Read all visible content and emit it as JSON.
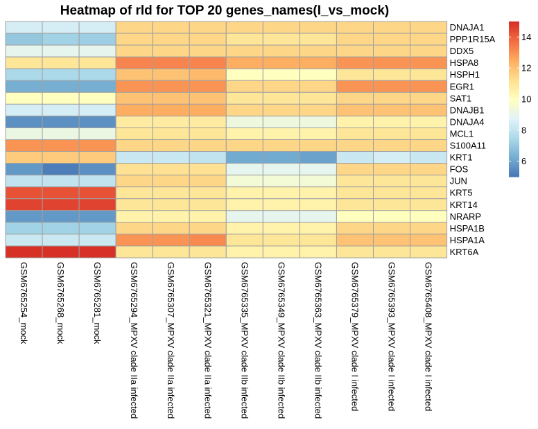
{
  "chart_data": {
    "type": "heatmap",
    "title": "Heatmap of rld for TOP 20 genes_names(I_vs_mock)",
    "rows": [
      "DNAJA1",
      "PPP1R15A",
      "DDX5",
      "HSPA8",
      "HSPH1",
      "EGR1",
      "SAT1",
      "DNAJB1",
      "DNAJA4",
      "MCL1",
      "S100A11",
      "KRT1",
      "FOS",
      "JUN",
      "KRT5",
      "KRT14",
      "NRARP",
      "HSPA1B",
      "HSPA1A",
      "KRT6A"
    ],
    "columns": [
      "GSM6765254_mock",
      "GSM6765268_mock",
      "GSM6765281_mock",
      "GSM6765294_MPXV clade IIa infected",
      "GSM6765307_MPXV clade IIa infected",
      "GSM6765321_MPXV clade IIa infected",
      "GSM6765335_MPXV clade IIb infected",
      "GSM6765349_MPXV clade IIb infected",
      "GSM6765363_MPXV clade IIb infected",
      "GSM6765379_MPXV clade I infected",
      "GSM6765393_MPXV clade I infected",
      "GSM6765408_MPXV clade I infected"
    ],
    "values": [
      [
        8.5,
        8.5,
        8.5,
        11.5,
        11.5,
        11.5,
        11.5,
        11.5,
        11.5,
        11.5,
        11.5,
        11.5
      ],
      [
        7.0,
        7.3,
        7.2,
        11.5,
        11.5,
        11.5,
        11.0,
        11.0,
        11.0,
        11.5,
        11.5,
        11.5
      ],
      [
        9.0,
        9.0,
        9.0,
        11.5,
        11.5,
        11.5,
        11.5,
        11.5,
        11.5,
        11.5,
        11.5,
        11.5
      ],
      [
        11.0,
        11.0,
        11.0,
        13.3,
        13.3,
        13.3,
        12.5,
        12.5,
        12.5,
        13.0,
        13.0,
        13.0
      ],
      [
        7.5,
        7.5,
        7.5,
        12.0,
        12.0,
        12.2,
        10.0,
        10.0,
        10.0,
        11.0,
        11.0,
        11.0
      ],
      [
        6.3,
        6.3,
        6.3,
        13.0,
        13.0,
        13.0,
        11.5,
        11.5,
        11.5,
        13.0,
        13.0,
        13.0
      ],
      [
        10.0,
        10.0,
        10.0,
        12.0,
        12.0,
        12.0,
        11.0,
        11.0,
        11.0,
        11.5,
        11.5,
        11.5
      ],
      [
        8.5,
        8.5,
        8.5,
        12.5,
        12.5,
        12.5,
        11.5,
        11.5,
        11.5,
        12.0,
        12.0,
        12.0
      ],
      [
        5.6,
        5.6,
        5.6,
        10.8,
        10.8,
        10.8,
        9.3,
        9.3,
        9.3,
        10.5,
        10.5,
        10.5
      ],
      [
        9.2,
        9.2,
        9.2,
        11.0,
        11.0,
        11.0,
        10.5,
        10.5,
        10.5,
        11.0,
        11.0,
        11.0
      ],
      [
        13.0,
        13.0,
        13.0,
        11.5,
        11.5,
        11.5,
        11.5,
        11.5,
        11.5,
        11.5,
        11.5,
        11.5
      ],
      [
        11.8,
        11.8,
        11.8,
        8.2,
        8.2,
        8.0,
        6.2,
        6.2,
        6.0,
        8.2,
        8.5,
        8.2
      ],
      [
        5.8,
        5.2,
        5.6,
        11.2,
        11.2,
        11.2,
        9.0,
        9.0,
        9.0,
        11.5,
        11.5,
        11.5
      ],
      [
        8.0,
        8.0,
        8.0,
        11.5,
        11.5,
        11.5,
        9.5,
        9.5,
        9.5,
        11.0,
        11.0,
        11.0
      ],
      [
        14.3,
        14.3,
        14.3,
        11.0,
        11.0,
        11.0,
        10.5,
        10.5,
        10.5,
        11.0,
        11.0,
        11.0
      ],
      [
        14.6,
        14.6,
        14.6,
        11.0,
        11.0,
        11.0,
        10.5,
        10.5,
        10.5,
        11.0,
        11.0,
        11.0
      ],
      [
        5.8,
        5.8,
        5.8,
        10.5,
        10.5,
        10.5,
        9.0,
        9.0,
        9.0,
        10.0,
        10.0,
        10.0
      ],
      [
        7.3,
        7.3,
        7.3,
        11.5,
        11.5,
        11.5,
        10.5,
        10.5,
        10.5,
        11.5,
        11.5,
        11.5
      ],
      [
        8.2,
        8.2,
        8.2,
        13.0,
        13.0,
        13.2,
        11.0,
        11.0,
        11.0,
        12.0,
        12.0,
        12.0
      ],
      [
        15.0,
        15.0,
        15.0,
        11.0,
        11.0,
        11.0,
        10.5,
        10.5,
        10.5,
        11.0,
        11.0,
        11.0
      ]
    ],
    "legend": {
      "range": [
        5,
        15
      ],
      "ticks": [
        6,
        8,
        10,
        12,
        14
      ],
      "placement": "right"
    },
    "colors": {
      "low": "#4575B4",
      "mid": "#FFFFBF",
      "high": "#D73027",
      "grid": "#A0A0A0"
    }
  }
}
